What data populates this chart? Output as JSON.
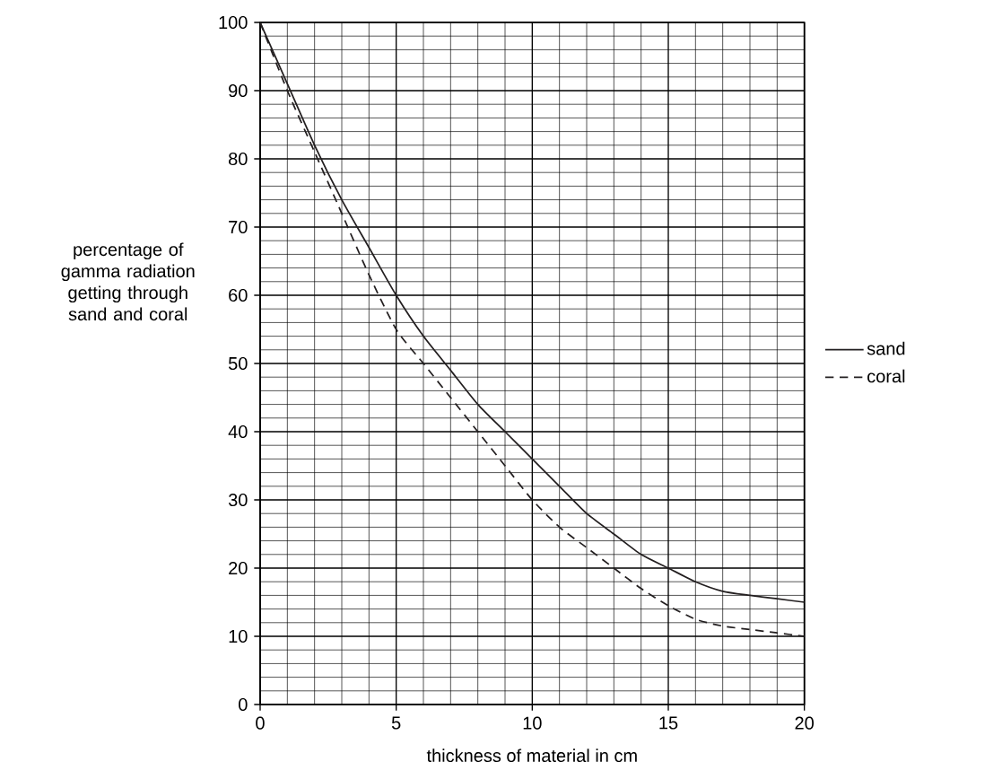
{
  "chart_data": {
    "type": "line",
    "xlabel": "thickness of material in cm",
    "ylabel": "percentage of gamma radiation getting through sand and coral",
    "xlim": [
      0,
      20
    ],
    "ylim": [
      0,
      100
    ],
    "xticks": [
      0,
      5,
      10,
      15,
      20
    ],
    "yticks": [
      0,
      10,
      20,
      30,
      40,
      50,
      60,
      70,
      80,
      90,
      100
    ],
    "grid": true,
    "legend": "right",
    "marker": "none",
    "x": [
      0,
      1,
      2,
      3,
      4,
      5,
      6,
      7,
      8,
      9,
      10,
      11,
      12,
      13,
      14,
      15,
      16,
      17,
      18,
      19,
      20
    ],
    "series": [
      {
        "name": "sand",
        "color": "#231f20",
        "line_style": "solid",
        "values": [
          100,
          91,
          82,
          74,
          67,
          60,
          54,
          49,
          44,
          40,
          36,
          32,
          28,
          25,
          22,
          20,
          18,
          16.6,
          16,
          15.5,
          15
        ]
      },
      {
        "name": "coral",
        "color": "#231f20",
        "line_style": "dashed",
        "values": [
          100,
          90,
          81,
          72,
          63,
          55,
          50,
          45,
          40,
          35,
          30,
          26,
          23,
          20,
          17,
          14.5,
          12.5,
          11.5,
          11,
          10.5,
          10
        ]
      }
    ]
  }
}
